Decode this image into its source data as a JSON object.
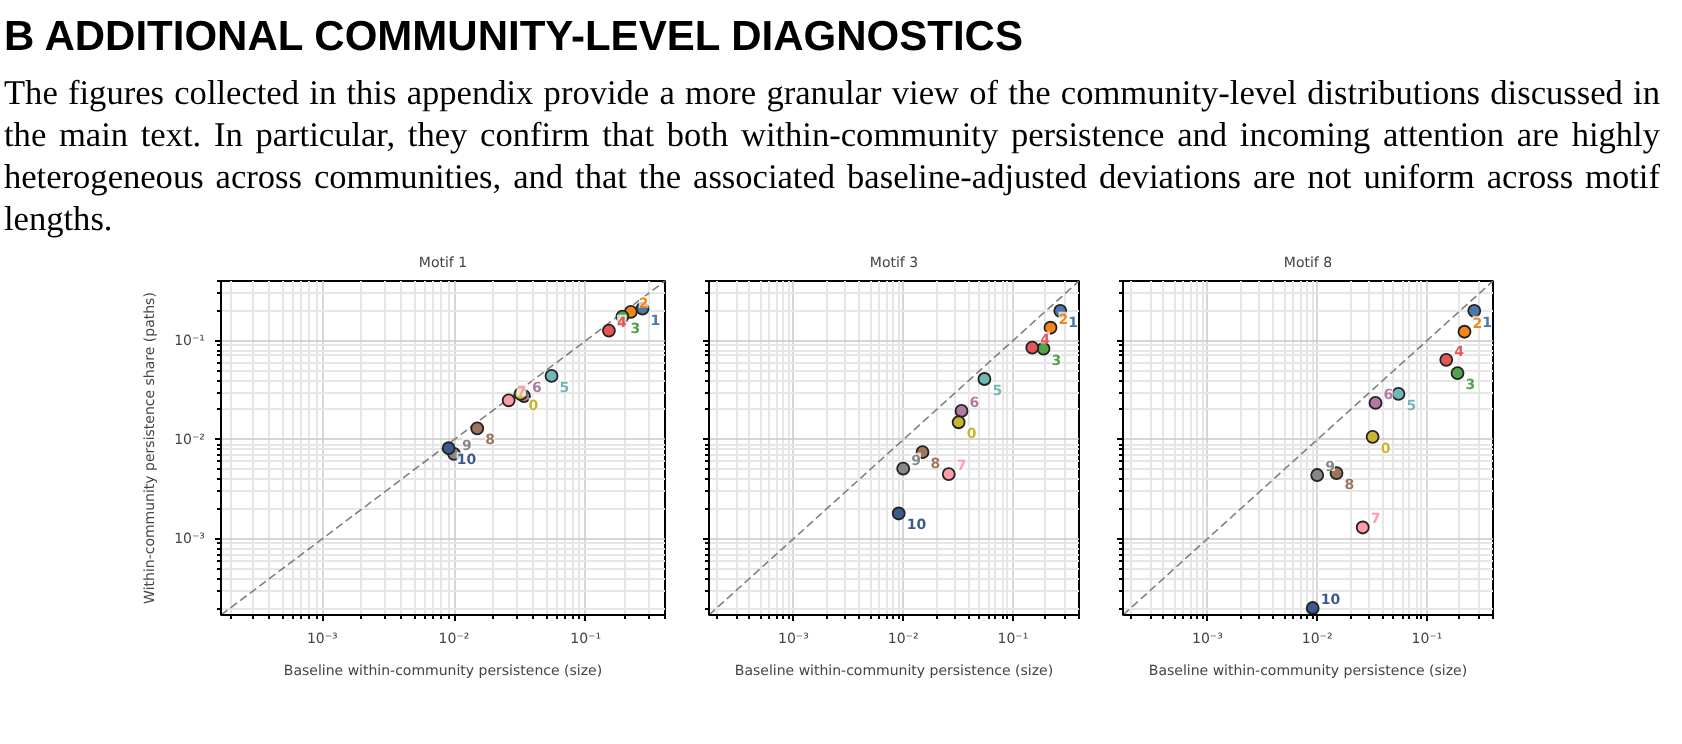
{
  "chart_data": [
    {
      "type": "scatter",
      "title": "Motif 1",
      "xlabel": "Baseline within-community persistence (size)",
      "ylabel": "Within-community persistence share (paths)",
      "log": "xy",
      "grid": true,
      "marker": "circle",
      "xlim": [
        0.00017,
        0.4
      ],
      "ylim": [
        0.00017,
        0.4
      ],
      "xticks": [
        {
          "value": 0.001,
          "label": "10⁻³"
        },
        {
          "value": 0.01,
          "label": "10⁻²"
        },
        {
          "value": 0.1,
          "label": "10⁻¹"
        }
      ],
      "yticks": [
        {
          "value": 0.001,
          "label": "10⁻³"
        },
        {
          "value": 0.01,
          "label": "10⁻²"
        },
        {
          "value": 0.1,
          "label": "10⁻¹"
        }
      ],
      "series": [
        {
          "type": "line",
          "marker": "none",
          "color": "#808080",
          "line_style": "dashed",
          "x": [
            0.00017,
            0.4
          ],
          "values": [
            0.00017,
            0.4
          ]
        },
        {
          "x": [
            0.27,
            0.22,
            0.19,
            0.15,
            0.055,
            0.034,
            0.032,
            0.026,
            0.015,
            0.01,
            0.0091
          ],
          "values": [
            0.21,
            0.195,
            0.175,
            0.126,
            0.044,
            0.0275,
            0.029,
            0.025,
            0.013,
            0.0072,
            0.0082
          ],
          "colors": [
            "#4c78a8",
            "#f58518",
            "#54a24b",
            "#e45756",
            "#72b7b2",
            "#b279a2",
            "#c9b52f",
            "#ff9da6",
            "#9d755d",
            "#888888",
            "#3b5b8c"
          ]
        }
      ],
      "annotations": [
        "B ADDITIONAL COMMUNITY-LEVEL DIAGNOSTICS",
        "The figures collected in this appendix provide a more granular view of the community-level distributions discussed in the main text. In particular, they confirm that both within-community persistence and incoming attention are highly heterogeneous across communities, and that the associated baseline-adjusted deviations are not uniform across motif lengths.",
        {
          "text": "1",
          "x": 0.27,
          "y": 0.21
        },
        {
          "text": "2",
          "x": 0.22,
          "y": 0.195
        },
        {
          "text": "3",
          "x": 0.19,
          "y": 0.175
        },
        {
          "text": "4",
          "x": 0.15,
          "y": 0.126
        },
        {
          "text": "5",
          "x": 0.055,
          "y": 0.044
        },
        {
          "text": "6",
          "x": 0.034,
          "y": 0.0275
        },
        {
          "text": "0",
          "x": 0.032,
          "y": 0.029
        },
        {
          "text": "7",
          "x": 0.026,
          "y": 0.025
        },
        {
          "text": "8",
          "x": 0.015,
          "y": 0.013
        },
        {
          "text": "9",
          "x": 0.01,
          "y": 0.0072
        },
        {
          "text": "10",
          "x": 0.0091,
          "y": 0.0082
        }
      ]
    },
    {
      "type": "scatter",
      "title": "Motif 3",
      "xlabel": "Baseline within-community persistence (size)",
      "tick_labels": "x",
      "log": "xy",
      "grid": true,
      "marker": "circle",
      "xlim": [
        0.00017,
        0.4
      ],
      "ylim": [
        0.00017,
        0.4
      ],
      "xticks": [
        {
          "value": 0.001,
          "label": "10⁻³"
        },
        {
          "value": 0.01,
          "label": "10⁻²"
        },
        {
          "value": 0.1,
          "label": "10⁻¹"
        }
      ],
      "yticks": [
        {
          "value": 0.001,
          "label": null
        },
        {
          "value": 0.01,
          "label": null
        },
        {
          "value": 0.1,
          "label": null
        }
      ],
      "series": [
        {
          "type": "line",
          "marker": "none",
          "color": "#808080",
          "line_style": "dashed",
          "x": [
            0.00017,
            0.4
          ],
          "values": [
            0.00017,
            0.4
          ]
        },
        {
          "x": [
            0.27,
            0.22,
            0.19,
            0.15,
            0.055,
            0.034,
            0.032,
            0.026,
            0.015,
            0.01,
            0.0091
          ],
          "values": [
            0.2,
            0.135,
            0.083,
            0.085,
            0.041,
            0.0195,
            0.015,
            0.0045,
            0.0075,
            0.0051,
            0.0018
          ],
          "colors": [
            "#4c78a8",
            "#f58518",
            "#54a24b",
            "#e45756",
            "#72b7b2",
            "#b279a2",
            "#c9b52f",
            "#ff9da6",
            "#9d755d",
            "#888888",
            "#3b5b8c"
          ]
        }
      ],
      "annotations": [
        {
          "text": "1",
          "x": 0.27,
          "y": 0.2
        },
        {
          "text": "2",
          "x": 0.22,
          "y": 0.135
        },
        {
          "text": "3",
          "x": 0.19,
          "y": 0.083
        },
        {
          "text": "4",
          "x": 0.15,
          "y": 0.085
        },
        {
          "text": "5",
          "x": 0.055,
          "y": 0.041
        },
        {
          "text": "6",
          "x": 0.034,
          "y": 0.0195
        },
        {
          "text": "0",
          "x": 0.032,
          "y": 0.015
        },
        {
          "text": "7",
          "x": 0.026,
          "y": 0.0045
        },
        {
          "text": "8",
          "x": 0.015,
          "y": 0.0075
        },
        {
          "text": "9",
          "x": 0.01,
          "y": 0.0051
        },
        {
          "text": "10",
          "x": 0.0091,
          "y": 0.0018
        }
      ]
    },
    {
      "type": "scatter",
      "title": "Motif 8",
      "xlabel": "Baseline within-community persistence (size)",
      "tick_labels": "x",
      "log": "xy",
      "grid": true,
      "marker": "circle",
      "xlim": [
        0.00017,
        0.4
      ],
      "ylim": [
        0.00017,
        0.4
      ],
      "xticks": [
        {
          "value": 0.001,
          "label": "10⁻³"
        },
        {
          "value": 0.01,
          "label": "10⁻²"
        },
        {
          "value": 0.1,
          "label": "10⁻¹"
        }
      ],
      "yticks": [
        {
          "value": 0.001,
          "label": null
        },
        {
          "value": 0.01,
          "label": null
        },
        {
          "value": 0.1,
          "label": null
        }
      ],
      "series": [
        {
          "type": "line",
          "marker": "none",
          "color": "#808080",
          "line_style": "dashed",
          "x": [
            0.00017,
            0.4
          ],
          "values": [
            0.00017,
            0.4
          ]
        },
        {
          "x": [
            0.27,
            0.22,
            0.19,
            0.15,
            0.055,
            0.034,
            0.032,
            0.026,
            0.015,
            0.01,
            0.0091
          ],
          "values": [
            0.2,
            0.123,
            0.047,
            0.064,
            0.029,
            0.0235,
            0.0107,
            0.0013,
            0.0046,
            0.0044,
            0.0002
          ],
          "colors": [
            "#4c78a8",
            "#f58518",
            "#54a24b",
            "#e45756",
            "#72b7b2",
            "#b279a2",
            "#c9b52f",
            "#ff9da6",
            "#9d755d",
            "#888888",
            "#3b5b8c"
          ]
        }
      ],
      "annotations": [
        {
          "text": "1",
          "x": 0.27,
          "y": 0.2
        },
        {
          "text": "2",
          "x": 0.22,
          "y": 0.123
        },
        {
          "text": "3",
          "x": 0.19,
          "y": 0.047
        },
        {
          "text": "4",
          "x": 0.15,
          "y": 0.064
        },
        {
          "text": "5",
          "x": 0.055,
          "y": 0.029
        },
        {
          "text": "6",
          "x": 0.034,
          "y": 0.0235
        },
        {
          "text": "0",
          "x": 0.032,
          "y": 0.0107
        },
        {
          "text": "7",
          "x": 0.026,
          "y": 0.0013
        },
        {
          "text": "8",
          "x": 0.015,
          "y": 0.0046
        },
        {
          "text": "9",
          "x": 0.01,
          "y": 0.0044
        },
        {
          "text": "10",
          "x": 0.0091,
          "y": 0.0002
        }
      ]
    }
  ]
}
